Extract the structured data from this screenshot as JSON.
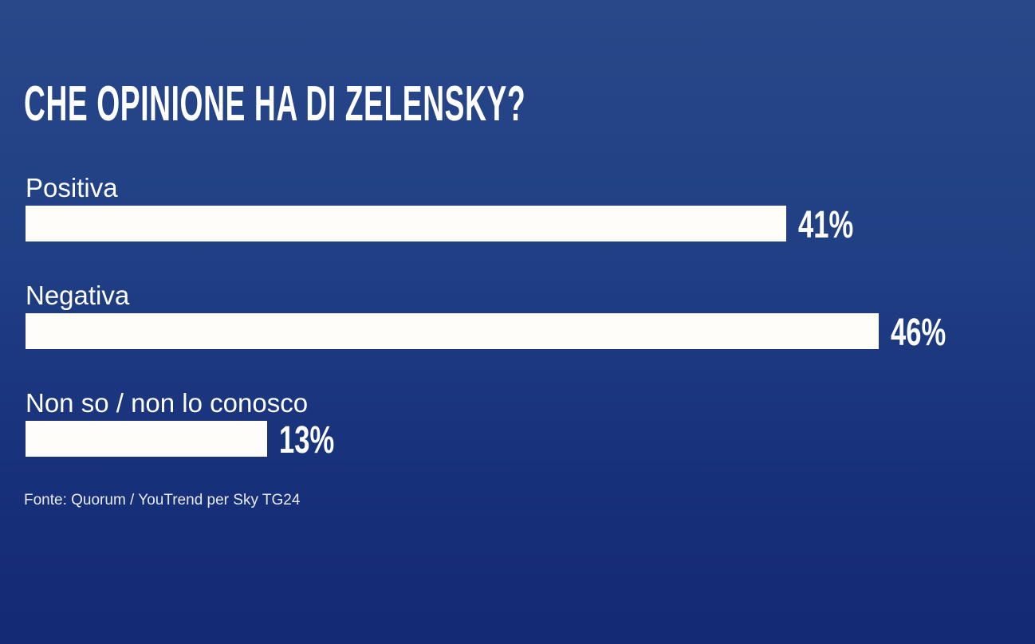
{
  "chart_data": {
    "type": "bar",
    "orientation": "horizontal",
    "title": "CHE OPINIONE HA DI ZELENSKY?",
    "categories": [
      "Positiva",
      "Negativa",
      "Non so / non lo conosco"
    ],
    "values": [
      41,
      46,
      13
    ],
    "value_labels": [
      "41%",
      "46%",
      "13%"
    ],
    "unit": "%",
    "xlim": [
      0,
      55
    ],
    "grid": false,
    "bar_color": "#fffdf9",
    "background_color": "#203f84"
  },
  "source": "Fonte: Quorum / YouTrend per Sky TG24"
}
